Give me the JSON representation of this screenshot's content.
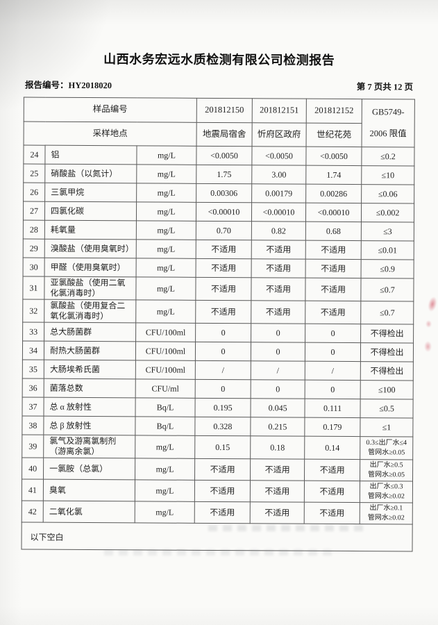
{
  "page": {
    "title": "山西水务宏远水质检测有限公司检测报告",
    "report_no_label": "报告编号：",
    "report_no": "HY2018020",
    "page_info": "第 7 页共 12 页"
  },
  "colors": {
    "table_border": "#585858",
    "text": "#1d1d1d",
    "red_bleedthrough": "#c8374b"
  },
  "table": {
    "header": {
      "sample_id_label": "样品编号",
      "location_label": "采样地点",
      "sample_ids": [
        "201812150",
        "201812151",
        "201812152"
      ],
      "locations": [
        "地震局宿舍",
        "忻府区政府",
        "世纪花苑"
      ],
      "limit_line1": "GB5749-",
      "limit_line2": "2006 限值"
    },
    "rows": [
      {
        "no": "24",
        "name": "铝",
        "unit": "mg/L",
        "v1": "<0.0050",
        "v2": "<0.0050",
        "v3": "<0.0050",
        "limit": "≤0.2"
      },
      {
        "no": "25",
        "name": "硝酸盐（以氮计）",
        "unit": "mg/L",
        "v1": "1.75",
        "v2": "3.00",
        "v3": "1.74",
        "limit": "≤10"
      },
      {
        "no": "26",
        "name": "三氯甲烷",
        "unit": "mg/L",
        "v1": "0.00306",
        "v2": "0.00179",
        "v3": "0.00286",
        "limit": "≤0.06"
      },
      {
        "no": "27",
        "name": "四氯化碳",
        "unit": "mg/L",
        "v1": "<0.00010",
        "v2": "<0.00010",
        "v3": "<0.00010",
        "limit": "≤0.002"
      },
      {
        "no": "28",
        "name": "耗氧量",
        "unit": "mg/L",
        "v1": "0.70",
        "v2": "0.82",
        "v3": "0.68",
        "limit": "≤3"
      },
      {
        "no": "29",
        "name": "溴酸盐（使用臭氧时）",
        "unit": "mg/L",
        "v1": "不适用",
        "v2": "不适用",
        "v3": "不适用",
        "limit": "≤0.01"
      },
      {
        "no": "30",
        "name": "甲醛（使用臭氧时）",
        "unit": "mg/L",
        "v1": "不适用",
        "v2": "不适用",
        "v3": "不适用",
        "limit": "≤0.9"
      },
      {
        "no": "31",
        "name": "亚氯酸盐（使用二氧化氯消毒时）",
        "unit": "mg/L",
        "v1": "不适用",
        "v2": "不适用",
        "v3": "不适用",
        "limit": "≤0.7"
      },
      {
        "no": "32",
        "name": "氯酸盐（使用复合二氧化氯消毒时）",
        "unit": "mg/L",
        "v1": "不适用",
        "v2": "不适用",
        "v3": "不适用",
        "limit": "≤0.7"
      },
      {
        "no": "33",
        "name": "总大肠菌群",
        "unit": "CFU/100ml",
        "v1": "0",
        "v2": "0",
        "v3": "0",
        "limit": "不得检出"
      },
      {
        "no": "34",
        "name": "耐热大肠菌群",
        "unit": "CFU/100ml",
        "v1": "0",
        "v2": "0",
        "v3": "0",
        "limit": "不得检出"
      },
      {
        "no": "35",
        "name": "大肠埃希氏菌",
        "unit": "CFU/100ml",
        "v1": "/",
        "v2": "/",
        "v3": "/",
        "limit": "不得检出"
      },
      {
        "no": "36",
        "name": "菌落总数",
        "unit": "CFU/ml",
        "v1": "0",
        "v2": "0",
        "v3": "0",
        "limit": "≤100"
      },
      {
        "no": "37",
        "name": "总 α 放射性",
        "unit": "Bq/L",
        "v1": "0.195",
        "v2": "0.045",
        "v3": "0.111",
        "limit": "≤0.5"
      },
      {
        "no": "38",
        "name": "总 β 放射性",
        "unit": "Bq/L",
        "v1": "0.328",
        "v2": "0.215",
        "v3": "0.179",
        "limit": "≤1"
      },
      {
        "no": "39",
        "name": "氯气及游离氯制剂（游离余氯）",
        "unit": "mg/L",
        "v1": "0.15",
        "v2": "0.18",
        "v3": "0.14",
        "limit": "0.3≤出厂水≤4",
        "limit2": "管网水≥0.05"
      },
      {
        "no": "40",
        "name": "一氯胺（总氯）",
        "unit": "mg/L",
        "v1": "不适用",
        "v2": "不适用",
        "v3": "不适用",
        "limit": "出厂水≥0.5",
        "limit2": "管网水≥0.05"
      },
      {
        "no": "41",
        "name": "臭氧",
        "unit": "mg/L",
        "v1": "不适用",
        "v2": "不适用",
        "v3": "不适用",
        "limit": "出厂水≤0.3",
        "limit2": "管网水≥0.02"
      },
      {
        "no": "42",
        "name": "二氧化氯",
        "unit": "mg/L",
        "v1": "不适用",
        "v2": "不适用",
        "v3": "不适用",
        "limit": "出厂水≥0.1",
        "limit2": "管网水≥0.02"
      }
    ],
    "blank_note": "以下空白"
  }
}
